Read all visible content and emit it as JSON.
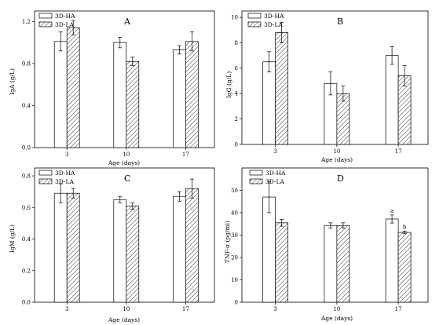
{
  "chart_data": [
    {
      "type": "bar",
      "panel_label": "A",
      "categories": [
        "3",
        "10",
        "17"
      ],
      "series": [
        {
          "name": "3D-HA",
          "values": [
            1.01,
            1.0,
            0.93
          ],
          "errors": [
            0.09,
            0.05,
            0.04
          ]
        },
        {
          "name": "3D-LA",
          "values": [
            1.14,
            0.82,
            1.01
          ],
          "errors": [
            0.07,
            0.04,
            0.09
          ]
        }
      ],
      "xlabel": "Age (days)",
      "ylabel": "IgA (g/L)",
      "ylim": [
        0,
        1.3
      ],
      "yticks": [
        "0.0",
        "0.4",
        "0.8",
        "1.2"
      ],
      "annotations": [],
      "legend_position": "top-left",
      "grid": false
    },
    {
      "type": "bar",
      "panel_label": "B",
      "categories": [
        "3",
        "10",
        "17"
      ],
      "series": [
        {
          "name": "3D-HA",
          "values": [
            6.5,
            4.8,
            7.0
          ],
          "errors": [
            0.8,
            0.9,
            0.7
          ]
        },
        {
          "name": "3D-LA",
          "values": [
            8.8,
            4.0,
            5.4
          ],
          "errors": [
            0.8,
            0.6,
            0.8
          ]
        }
      ],
      "xlabel": "Age (days)",
      "ylabel": "IgG (g/L)",
      "ylim": [
        0,
        10.5
      ],
      "yticks": [
        "0",
        "2",
        "4",
        "6",
        "8",
        "10"
      ],
      "annotations": [],
      "legend_position": "top-left",
      "grid": false
    },
    {
      "type": "bar",
      "panel_label": "C",
      "categories": [
        "3",
        "10",
        "17"
      ],
      "series": [
        {
          "name": "3D-HA",
          "values": [
            0.69,
            0.65,
            0.67
          ],
          "errors": [
            0.06,
            0.02,
            0.03
          ]
        },
        {
          "name": "3D-LA",
          "values": [
            0.69,
            0.61,
            0.72
          ],
          "errors": [
            0.03,
            0.02,
            0.06
          ]
        }
      ],
      "xlabel": "Age (days)",
      "ylabel": "IgM (g/L)",
      "ylim": [
        0,
        0.85
      ],
      "yticks": [
        "0.0",
        "0.2",
        "0.4",
        "0.6",
        "0.8"
      ],
      "annotations": [],
      "legend_position": "top-left",
      "grid": false
    },
    {
      "type": "bar",
      "panel_label": "D",
      "categories": [
        "3",
        "10",
        "17"
      ],
      "series": [
        {
          "name": "3D-HA",
          "values": [
            47,
            34.3,
            37.2
          ],
          "errors": [
            7,
            1.2,
            1.8
          ]
        },
        {
          "name": "3D-LA",
          "values": [
            35.5,
            34.3,
            31.2
          ],
          "errors": [
            1.5,
            1.2,
            0.6
          ]
        }
      ],
      "xlabel": "Age (days)",
      "ylabel": "TNF-α (pg/ml)",
      "ylim": [
        0,
        60
      ],
      "yticks": [
        "0",
        "10",
        "20",
        "30",
        "40",
        "50"
      ],
      "annotations": [
        {
          "category": "17",
          "series": 0,
          "text": "a"
        },
        {
          "category": "17",
          "series": 1,
          "text": "b"
        }
      ],
      "legend_position": "top-left",
      "grid": false
    }
  ]
}
